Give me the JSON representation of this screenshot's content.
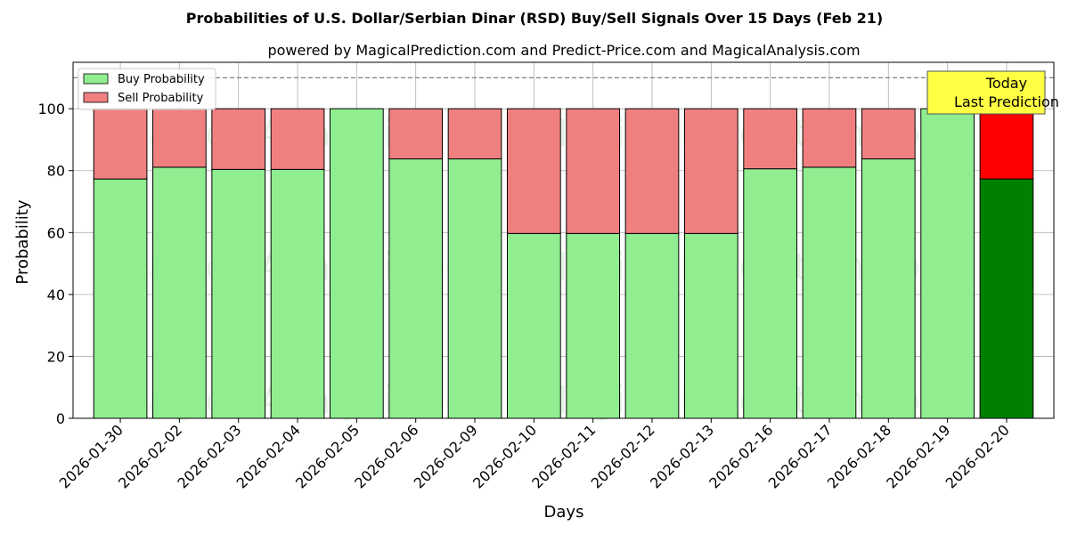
{
  "chart_data": {
    "type": "bar",
    "stacked": true,
    "title": "Probabilities of U.S. Dollar/Serbian Dinar (RSD) Buy/Sell Signals Over 15 Days (Feb 21)",
    "subtitle": "powered by MagicalPrediction.com and Predict-Price.com and MagicalAnalysis.com",
    "xlabel": "Days",
    "ylabel": "Probability",
    "ylim": [
      0,
      115
    ],
    "yticks": [
      0,
      20,
      40,
      60,
      80,
      100
    ],
    "reference_line": 110,
    "grid": true,
    "legend_position": "top-left",
    "categories": [
      "2026-01-30",
      "2026-02-02",
      "2026-02-03",
      "2026-02-04",
      "2026-02-05",
      "2026-02-06",
      "2026-02-09",
      "2026-02-10",
      "2026-02-11",
      "2026-02-12",
      "2026-02-13",
      "2026-02-16",
      "2026-02-17",
      "2026-02-18",
      "2026-02-19",
      "2026-02-20"
    ],
    "series": [
      {
        "name": "Buy Probability",
        "color": "#90ee90",
        "highlight_color": "#008000",
        "values": [
          77.3,
          81.1,
          80.4,
          80.4,
          100,
          83.8,
          83.8,
          59.7,
          59.7,
          59.7,
          59.7,
          80.6,
          81.1,
          83.8,
          100,
          77.3
        ]
      },
      {
        "name": "Sell Probability",
        "color": "#f08080",
        "highlight_color": "#ff0000",
        "values": [
          22.7,
          18.9,
          19.6,
          19.6,
          0,
          16.2,
          16.2,
          40.3,
          40.3,
          40.3,
          40.3,
          19.4,
          18.9,
          16.2,
          0,
          22.7
        ]
      }
    ],
    "annotation": {
      "line1": "Today",
      "line2": "Last Prediction",
      "color": "#ffff44"
    },
    "watermarks": [
      "MagicalAnalysis.com",
      "MagicalPrediction.com"
    ]
  }
}
